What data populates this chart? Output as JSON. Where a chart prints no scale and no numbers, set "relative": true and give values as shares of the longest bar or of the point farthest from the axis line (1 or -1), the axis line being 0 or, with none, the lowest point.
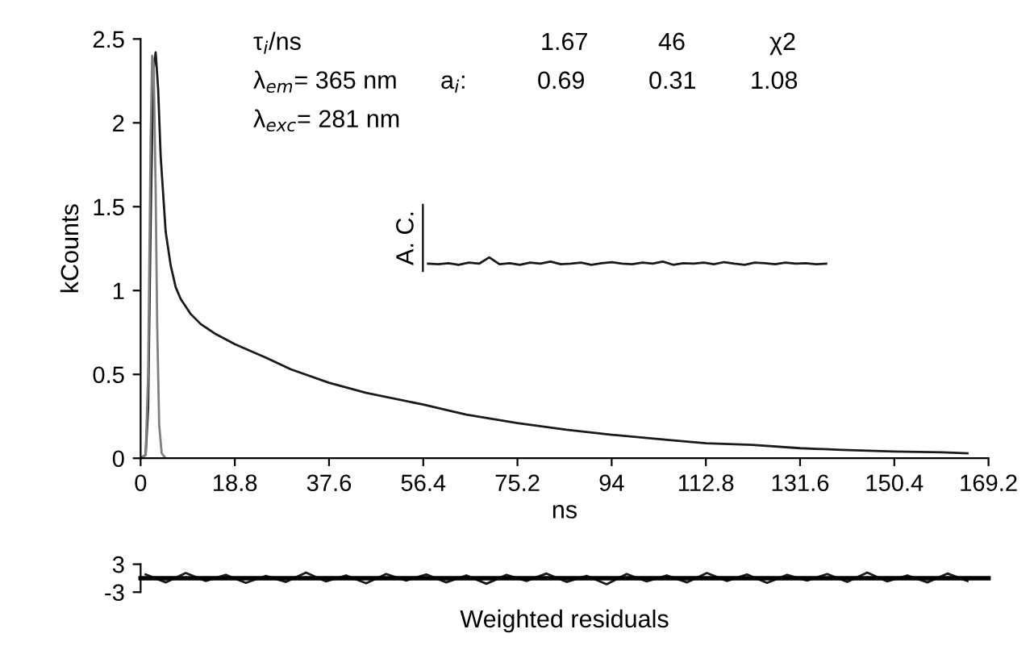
{
  "chart_data": [
    {
      "type": "line",
      "xlabel": "ns",
      "ylabel": "kCounts",
      "xlim": [
        0,
        169.2
      ],
      "ylim": [
        0,
        2.5
      ],
      "xticks": [
        0,
        18.8,
        37.6,
        56.4,
        75.2,
        94,
        112.8,
        131.6,
        150.4,
        169.2
      ],
      "yticks": [
        0,
        0.5,
        1,
        1.5,
        2,
        2.5
      ],
      "grid": false,
      "legend": false,
      "annotations": [
        "τ$_{i}$/ns",
        "1.67",
        "46",
        "χ2",
        "λ$_{em}$= 365 nm",
        "a$_{i}$:",
        "0.69",
        "0.31",
        "1.08",
        "λ$_{exc}$= 281 nm"
      ],
      "series": [
        {
          "color": "#1a1a1a",
          "x": [
            0,
            1,
            1.5,
            2,
            2.5,
            3,
            3.5,
            4,
            5,
            6,
            7,
            8,
            10,
            12,
            15,
            18.8,
            25,
            30,
            37.6,
            45,
            56.4,
            65,
            75.2,
            85,
            94,
            105,
            112.8,
            122,
            131.6,
            140,
            150.4,
            160,
            165
          ],
          "values": [
            0,
            0.02,
            0.3,
            1.4,
            2.3,
            2.42,
            2.2,
            1.8,
            1.35,
            1.15,
            1.02,
            0.95,
            0.86,
            0.8,
            0.74,
            0.68,
            0.6,
            0.53,
            0.45,
            0.39,
            0.32,
            0.26,
            0.21,
            0.17,
            0.14,
            0.11,
            0.09,
            0.08,
            0.06,
            0.05,
            0.04,
            0.035,
            0.03
          ]
        },
        {
          "color": "#808080",
          "x": [
            0,
            1,
            1.5,
            2,
            2.3,
            2.6,
            3,
            3.3,
            3.7,
            4.2,
            5
          ],
          "values": [
            0,
            0.02,
            0.5,
            1.9,
            2.4,
            2.35,
            1.6,
            0.8,
            0.2,
            0.03,
            0
          ]
        }
      ]
    },
    {
      "type": "line",
      "ylabel": "A. C.",
      "relative": true,
      "tick_labels": false,
      "categories": [
        null,
        null,
        null,
        null,
        null,
        null,
        null,
        null,
        null,
        null,
        null,
        null,
        null,
        null,
        null,
        null,
        null,
        null,
        null,
        null,
        null,
        null,
        null,
        null,
        null,
        null,
        null,
        null,
        null,
        null,
        null,
        null,
        null,
        null,
        null,
        null,
        null,
        null,
        null,
        null
      ],
      "series": [
        {
          "color": "#1a1a1a",
          "values": [
            0.4,
            0.35,
            0.45,
            0.3,
            0.5,
            0.4,
            1,
            0.35,
            0.45,
            0.3,
            0.5,
            0.4,
            0.6,
            0.35,
            0.4,
            0.5,
            0.3,
            0.45,
            0.55,
            0.4,
            0.35,
            0.5,
            0.4,
            0.6,
            0.3,
            0.45,
            0.4,
            0.5,
            0.35,
            0.55,
            0.4,
            0.3,
            0.5,
            0.45,
            0.35,
            0.5,
            0.4,
            0.45,
            0.35,
            0.4
          ]
        }
      ]
    },
    {
      "type": "line",
      "xlabel": "Weighted residuals",
      "xlim": [
        0,
        169.2
      ],
      "ylim": [
        -3,
        3
      ],
      "yticks": [
        3,
        -3
      ],
      "tick_labels": "y",
      "series": [
        {
          "color": "#1a1a1a",
          "x": [
            1,
            5,
            9,
            13,
            17,
            21,
            25,
            29,
            33,
            37,
            41,
            45,
            49,
            53,
            57,
            61,
            65,
            69,
            73,
            77,
            81,
            85,
            89,
            93,
            97,
            101,
            105,
            109,
            113,
            117,
            121,
            125,
            129,
            133,
            137,
            141,
            145,
            149,
            153,
            157,
            161,
            165
          ],
          "values": [
            0.8,
            -0.9,
            1.1,
            -0.6,
            0.7,
            -1.0,
            0.5,
            -0.8,
            1.2,
            -0.7,
            0.6,
            -1.1,
            0.9,
            -0.5,
            0.8,
            -0.9,
            0.6,
            -1.2,
            0.7,
            -0.6,
            1.0,
            -0.8,
            0.5,
            -1.3,
            0.9,
            -0.7,
            0.6,
            -0.9,
            1.1,
            -0.6,
            0.8,
            -1.0,
            0.7,
            -0.5,
            0.9,
            -0.8,
            1.2,
            -0.7,
            0.6,
            -0.9,
            1.0,
            -0.6
          ]
        }
      ]
    }
  ]
}
